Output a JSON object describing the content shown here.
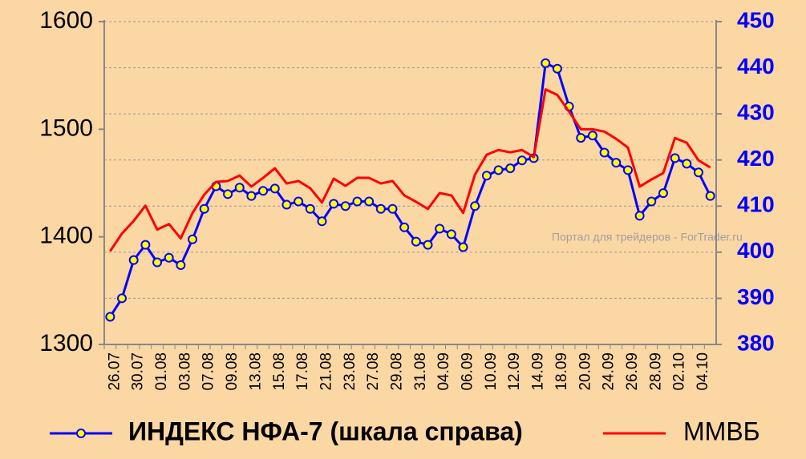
{
  "chart_data": {
    "type": "line",
    "categories": [
      "26.07",
      null,
      "30.07",
      null,
      "01.08",
      null,
      "03.08",
      null,
      "07.08",
      null,
      "09.08",
      null,
      "13.08",
      null,
      "15.08",
      null,
      "17.08",
      null,
      "21.08",
      null,
      "23.08",
      null,
      "27.08",
      null,
      "29.08",
      null,
      "31.08",
      null,
      "04.09",
      null,
      "06.09",
      null,
      "10.09",
      null,
      "12.09",
      null,
      "14.09",
      null,
      "18.09",
      null,
      "20.09",
      null,
      "24.09",
      null,
      "26.09",
      null,
      "28.09",
      null,
      "02.10",
      null,
      "04.10",
      null
    ],
    "series": [
      {
        "name": "ИНДЕКС НФА-7 (шкала справа)",
        "color": "#0000ff",
        "axis": "y2",
        "marker_color": "#ffff00",
        "values": [
          386,
          390,
          398.3,
          401.6,
          397.8,
          398.8,
          397.2,
          402.8,
          409.4,
          414.3,
          412.6,
          414,
          412.2,
          413.3,
          413.8,
          410.3,
          411,
          409.4,
          406.7,
          410.5,
          410,
          411,
          411,
          409.4,
          409.4,
          405.4,
          402.3,
          401.6,
          405.1,
          403.9,
          401.1,
          410,
          416.6,
          417.8,
          418.2,
          419.9,
          420.4,
          441,
          439.8,
          431.6,
          424.8,
          425.3,
          421.6,
          419.4,
          417.8,
          407.9,
          411,
          412.8,
          420.4,
          419.2,
          417.3,
          412.2
        ]
      },
      {
        "name": "ММВБ",
        "color": "#ff0000",
        "values": [
          1386.7,
          1403,
          1414.8,
          1428.9,
          1406.7,
          1411.9,
          1398.5,
          1422.2,
          1439.3,
          1451.1,
          1451.9,
          1457,
          1446.7,
          1454.8,
          1463.7,
          1449.6,
          1451.9,
          1445.2,
          1431.9,
          1454.1,
          1447.4,
          1454.8,
          1454.8,
          1449.6,
          1451.9,
          1438.5,
          1432.6,
          1425.9,
          1440.7,
          1438.5,
          1422.2,
          1457.8,
          1476.3,
          1480.7,
          1478.5,
          1480.7,
          1474.1,
          1537,
          1531.9,
          1516.3,
          1500,
          1500,
          1497.8,
          1491.1,
          1483,
          1446.7,
          1453.3,
          1459.3,
          1491.9,
          1487.4,
          1471.1,
          1464.4
        ]
      }
    ],
    "ylim": [
      1300,
      1600
    ],
    "yticks": [
      1300,
      1400,
      1500,
      1600
    ],
    "y2lim": [
      380,
      450
    ],
    "y2ticks": [
      380,
      390,
      400,
      410,
      420,
      430,
      440,
      450
    ],
    "grid": true,
    "legend": "bottom",
    "annotation": "Портал для трейдеров - ForTrader.ru"
  }
}
